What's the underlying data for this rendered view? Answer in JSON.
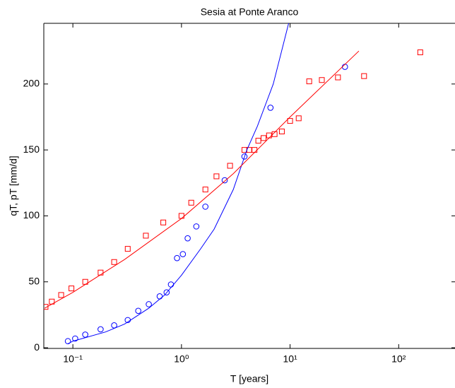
{
  "chart_data": {
    "type": "scatter",
    "title": "Sesia at Ponte Aranco",
    "xlabel": "T [years]",
    "ylabel": "qT, pT [mm/d]",
    "xscale": "log",
    "xlim": [
      0.054,
      330
    ],
    "ylim": [
      -0.5,
      246
    ],
    "xticks": [
      {
        "value": 0.1,
        "label": "10⁻¹"
      },
      {
        "value": 1,
        "label": "10⁰"
      },
      {
        "value": 10,
        "label": "10¹"
      },
      {
        "value": 100,
        "label": "10²"
      }
    ],
    "yticks": [
      0,
      50,
      100,
      150,
      200
    ],
    "grid": false,
    "series": [
      {
        "mode": "markers",
        "marker": "square",
        "color": "#ff0000",
        "x": [
          0.056,
          0.064,
          0.078,
          0.097,
          0.13,
          0.18,
          0.24,
          0.32,
          0.47,
          0.68,
          1.0,
          1.23,
          1.66,
          2.1,
          2.8,
          3.8,
          4.2,
          4.7,
          5.1,
          5.7,
          6.4,
          7.2,
          8.4,
          10,
          12,
          15,
          19.6,
          27.6,
          48,
          158
        ],
        "values": [
          31,
          35,
          40,
          45,
          50,
          57,
          65,
          75,
          85,
          95,
          100,
          110,
          120,
          130,
          138,
          150,
          150,
          150,
          157,
          159,
          161,
          162,
          164,
          172,
          174,
          202,
          203,
          205,
          206,
          224
        ]
      },
      {
        "mode": "markers",
        "marker": "circle",
        "color": "#0000ff",
        "x": [
          0.09,
          0.105,
          0.13,
          0.18,
          0.24,
          0.32,
          0.4,
          0.5,
          0.63,
          0.73,
          0.8,
          0.91,
          1.03,
          1.14,
          1.37,
          1.66,
          2.5,
          3.8,
          6.6,
          32
        ],
        "values": [
          5,
          7,
          10,
          14,
          17,
          21,
          28,
          33,
          39,
          42,
          48,
          68,
          71,
          83,
          92,
          107,
          127,
          145,
          182,
          213
        ]
      },
      {
        "mode": "line",
        "color": "#0000ff",
        "x": [
          0.09,
          0.1,
          0.2,
          0.3,
          0.5,
          0.7,
          1,
          1.5,
          2,
          3,
          4,
          5,
          7,
          9.7
        ],
        "values": [
          3,
          5,
          12,
          18,
          30,
          40,
          55,
          75,
          90,
          120,
          150,
          168,
          200,
          246
        ]
      },
      {
        "mode": "line",
        "color": "#ff0000",
        "x": [
          0.055,
          0.1,
          0.3,
          1,
          3,
          10,
          43
        ],
        "values": [
          30,
          42,
          67,
          98,
          132,
          175,
          225
        ]
      }
    ]
  }
}
